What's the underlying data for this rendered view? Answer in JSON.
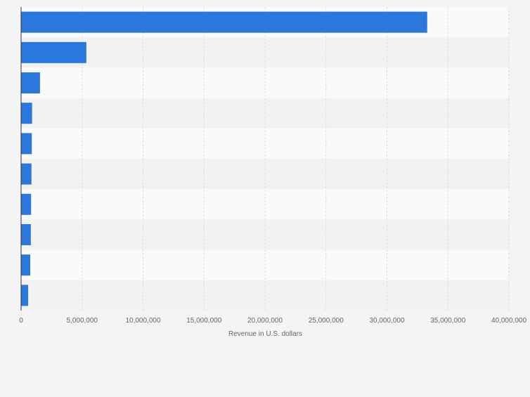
{
  "chart_data": {
    "type": "bar",
    "orientation": "horizontal",
    "categories": [
      "",
      "",
      "",
      "",
      "",
      "",
      "",
      "",
      "",
      ""
    ],
    "values": [
      33300000,
      5350000,
      1550000,
      900000,
      880000,
      850000,
      820000,
      800000,
      750000,
      580000
    ],
    "xlabel": "Revenue in U.S. dollars",
    "ylabel": "",
    "xlim": [
      0,
      40000000
    ],
    "xticks": [
      0,
      5000000,
      10000000,
      15000000,
      20000000,
      25000000,
      30000000,
      35000000,
      40000000
    ],
    "xtick_labels": [
      "0",
      "5,000,000",
      "10,000,000",
      "15,000,000",
      "20,000,000",
      "25,000,000",
      "30,000,000",
      "35,000,000",
      "40,000,000"
    ],
    "grid": true,
    "legend": "none",
    "colors": {
      "bar": "#2a78de",
      "background": "#f4f4f4",
      "band_light": "#fafafa",
      "band_dark": "#f2f2f2",
      "grid": "#dddddd",
      "axis": "#333333",
      "tick_text": "#666666"
    }
  }
}
